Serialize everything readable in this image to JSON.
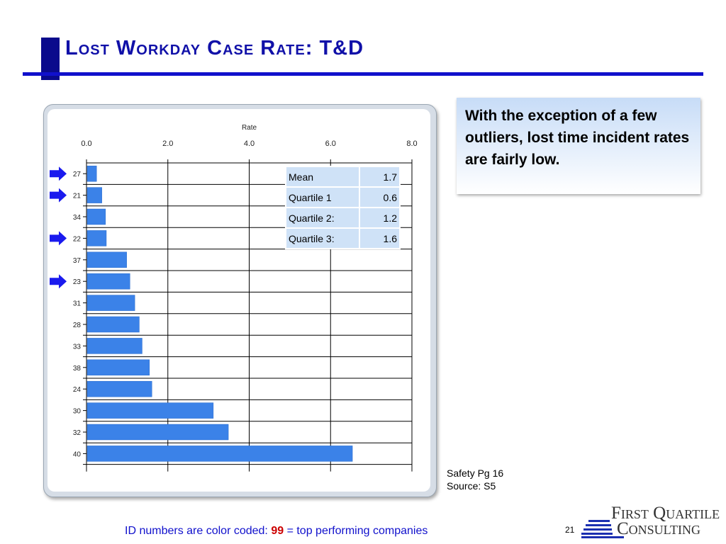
{
  "slide": {
    "title": "Lost Workday Case Rate: T&D",
    "page_number": "21"
  },
  "callout": {
    "text": "With the exception of a few outliers, lost time incident rates are fairly low."
  },
  "source_note": {
    "line1": "Safety Pg 16",
    "line2": "Source: S5"
  },
  "footer": {
    "prefix": "ID numbers are color coded: ",
    "highlight": "99",
    "suffix": " = top performing companies"
  },
  "logo": {
    "line1": "First Quartile",
    "line2": "Consulting"
  },
  "stats": [
    {
      "label": "Mean",
      "value": "1.7"
    },
    {
      "label": "Quartile 1",
      "value": "0.6"
    },
    {
      "label": "Quartile 2:",
      "value": "1.2"
    },
    {
      "label": "Quartile 3:",
      "value": "1.6"
    }
  ],
  "colors": {
    "bar": "#3b82e8",
    "arrow": "#1a1aee",
    "title": "#1010a8",
    "footer_highlight": "#cc0000"
  },
  "chart_data": {
    "type": "bar",
    "orientation": "horizontal",
    "title": "",
    "xlabel": "Rate",
    "ylabel": "",
    "xlim": [
      0,
      8
    ],
    "x_ticks": [
      "0.0",
      "2.0",
      "4.0",
      "6.0",
      "8.0"
    ],
    "grid": true,
    "categories": [
      "27",
      "21",
      "34",
      "22",
      "37",
      "23",
      "31",
      "28",
      "33",
      "38",
      "24",
      "30",
      "32",
      "40"
    ],
    "values": [
      0.23,
      0.36,
      0.45,
      0.47,
      0.97,
      1.05,
      1.17,
      1.28,
      1.35,
      1.53,
      1.59,
      3.1,
      3.47,
      6.52
    ],
    "highlighted_categories": [
      "27",
      "21",
      "22",
      "23"
    ]
  }
}
